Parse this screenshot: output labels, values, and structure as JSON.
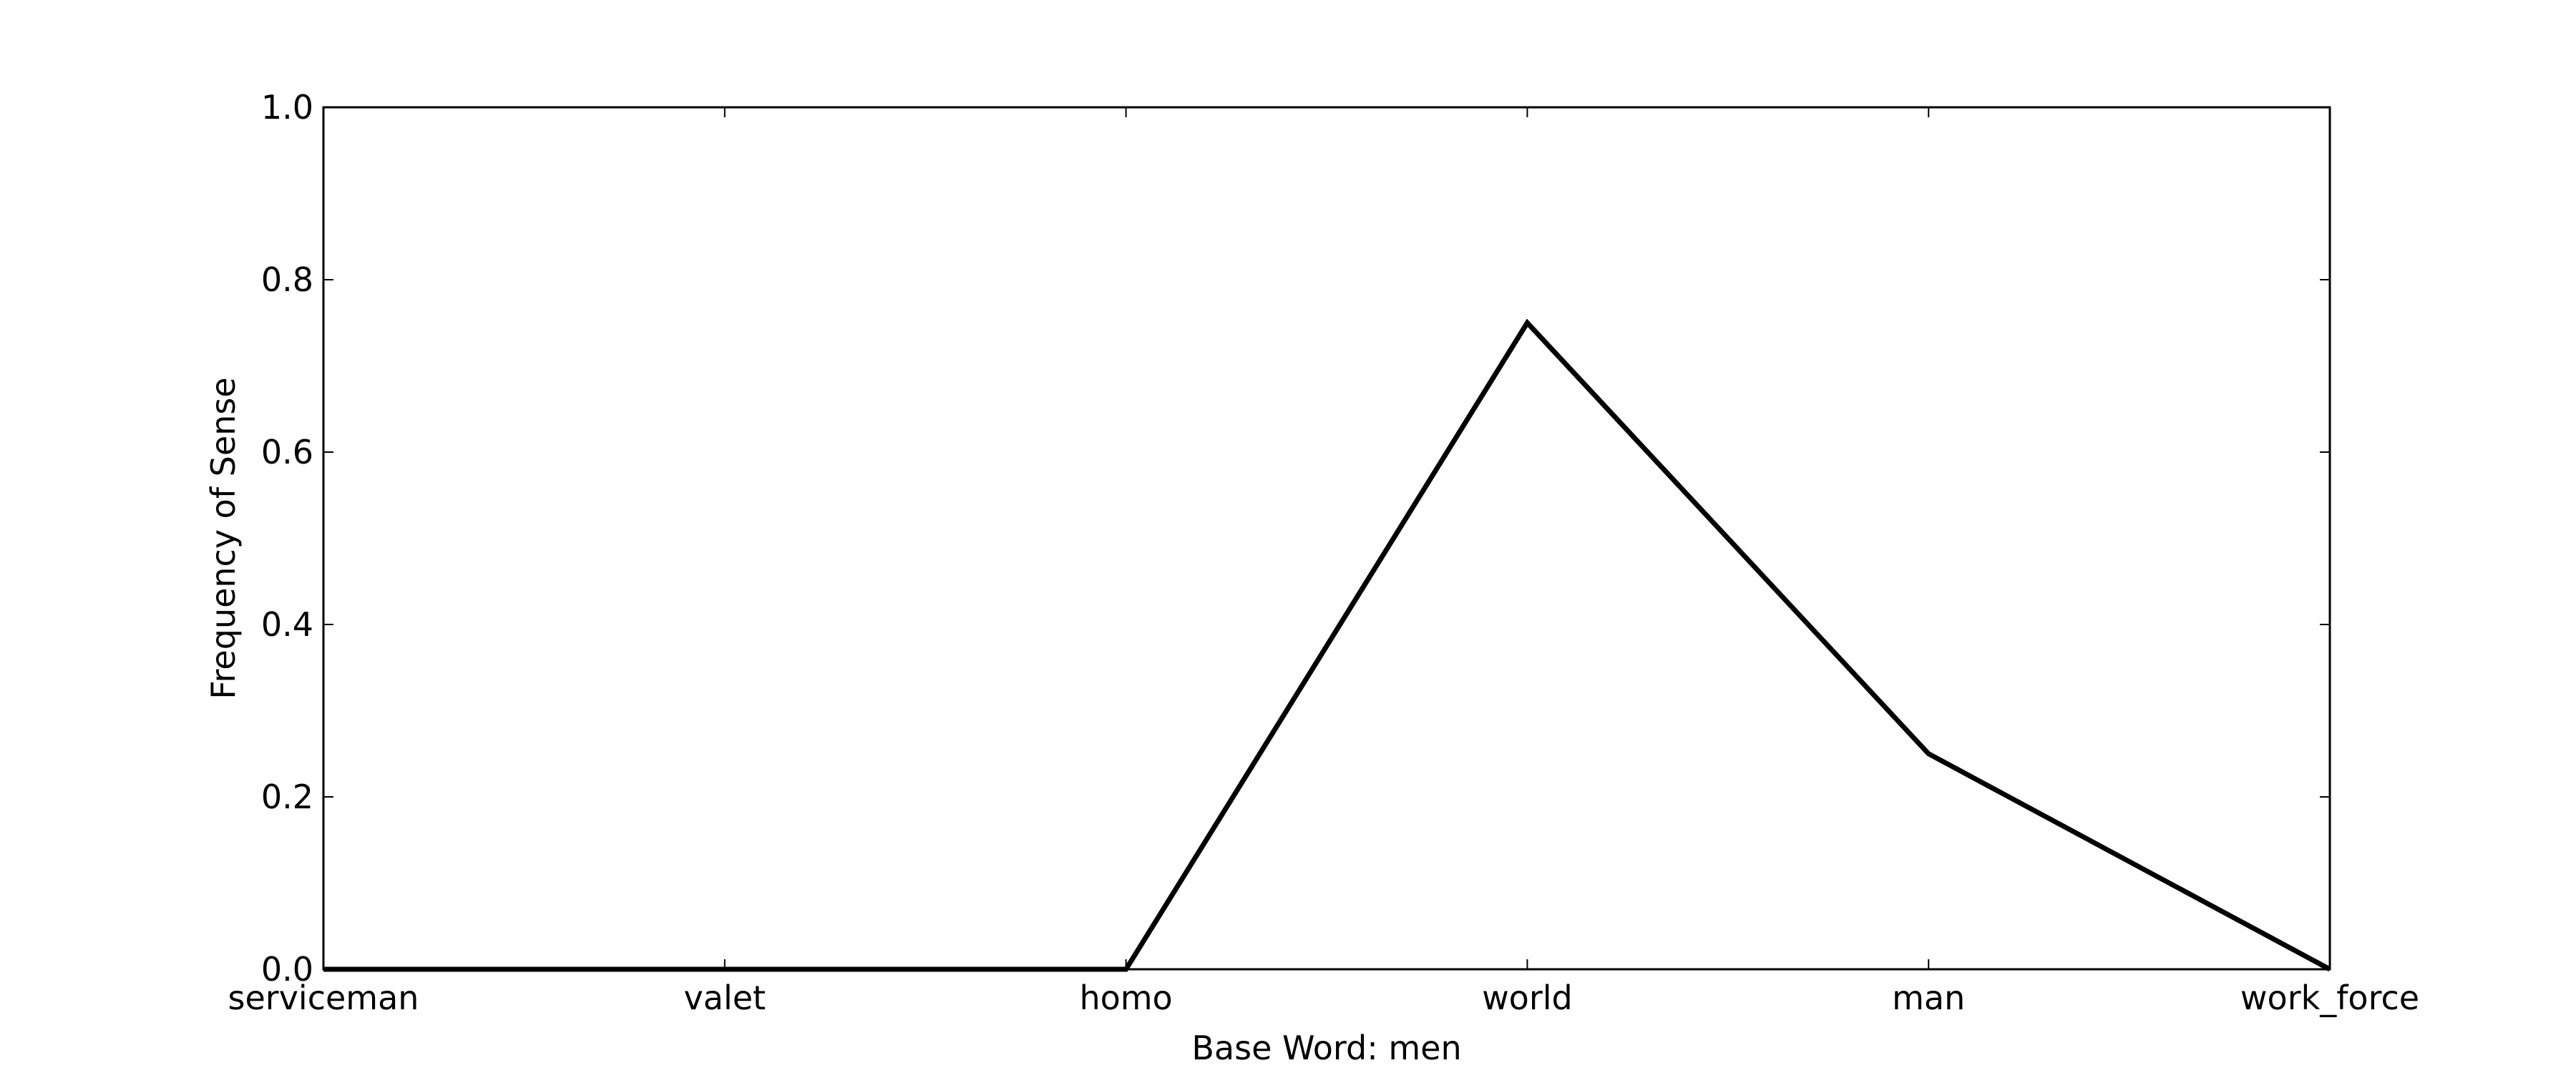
{
  "chart_data": {
    "type": "line",
    "title": "",
    "xlabel": "Base Word: men",
    "ylabel": "Frequency of Sense",
    "categories": [
      "serviceman",
      "valet",
      "homo",
      "world",
      "man",
      "work_force"
    ],
    "series": [
      {
        "values": [
          0.0,
          0.0,
          0.0,
          0.75,
          0.25,
          0.0
        ],
        "color": "#000000"
      }
    ],
    "ylim": [
      0.0,
      1.0
    ],
    "yticks": [
      "0.0",
      "0.2",
      "0.4",
      "0.6",
      "0.8",
      "1.0"
    ],
    "grid": false,
    "legend": "none"
  }
}
